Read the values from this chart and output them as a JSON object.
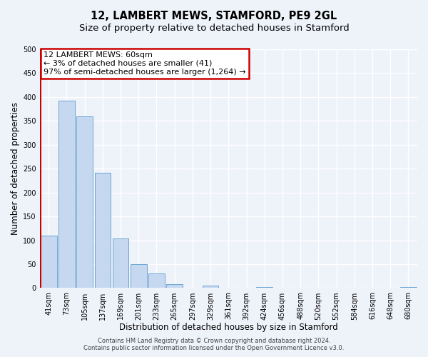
{
  "title": "12, LAMBERT MEWS, STAMFORD, PE9 2GL",
  "subtitle": "Size of property relative to detached houses in Stamford",
  "xlabel": "Distribution of detached houses by size in Stamford",
  "ylabel": "Number of detached properties",
  "bar_labels": [
    "41sqm",
    "73sqm",
    "105sqm",
    "137sqm",
    "169sqm",
    "201sqm",
    "233sqm",
    "265sqm",
    "297sqm",
    "329sqm",
    "361sqm",
    "392sqm",
    "424sqm",
    "456sqm",
    "488sqm",
    "520sqm",
    "552sqm",
    "584sqm",
    "616sqm",
    "648sqm",
    "680sqm"
  ],
  "bar_values": [
    110,
    393,
    360,
    242,
    104,
    50,
    30,
    8,
    0,
    5,
    0,
    0,
    2,
    0,
    0,
    0,
    0,
    0,
    0,
    0,
    2
  ],
  "bar_color": "#c5d8f0",
  "bar_edge_color": "#6aa3d4",
  "vline_color": "#cc0000",
  "annotation_line1": "12 LAMBERT MEWS: 60sqm",
  "annotation_line2": "← 3% of detached houses are smaller (41)",
  "annotation_line3": "97% of semi-detached houses are larger (1,264) →",
  "annotation_box_color": "#cc0000",
  "ylim": [
    0,
    500
  ],
  "yticks": [
    0,
    50,
    100,
    150,
    200,
    250,
    300,
    350,
    400,
    450,
    500
  ],
  "footer_line1": "Contains HM Land Registry data © Crown copyright and database right 2024.",
  "footer_line2": "Contains public sector information licensed under the Open Government Licence v3.0.",
  "bg_color": "#eef2f9",
  "plot_bg_color": "#eef2f9",
  "grid_color": "#ffffff",
  "title_fontsize": 10.5,
  "subtitle_fontsize": 9.5,
  "axis_label_fontsize": 8.5,
  "tick_fontsize": 7,
  "annotation_fontsize": 8,
  "footer_fontsize": 6
}
